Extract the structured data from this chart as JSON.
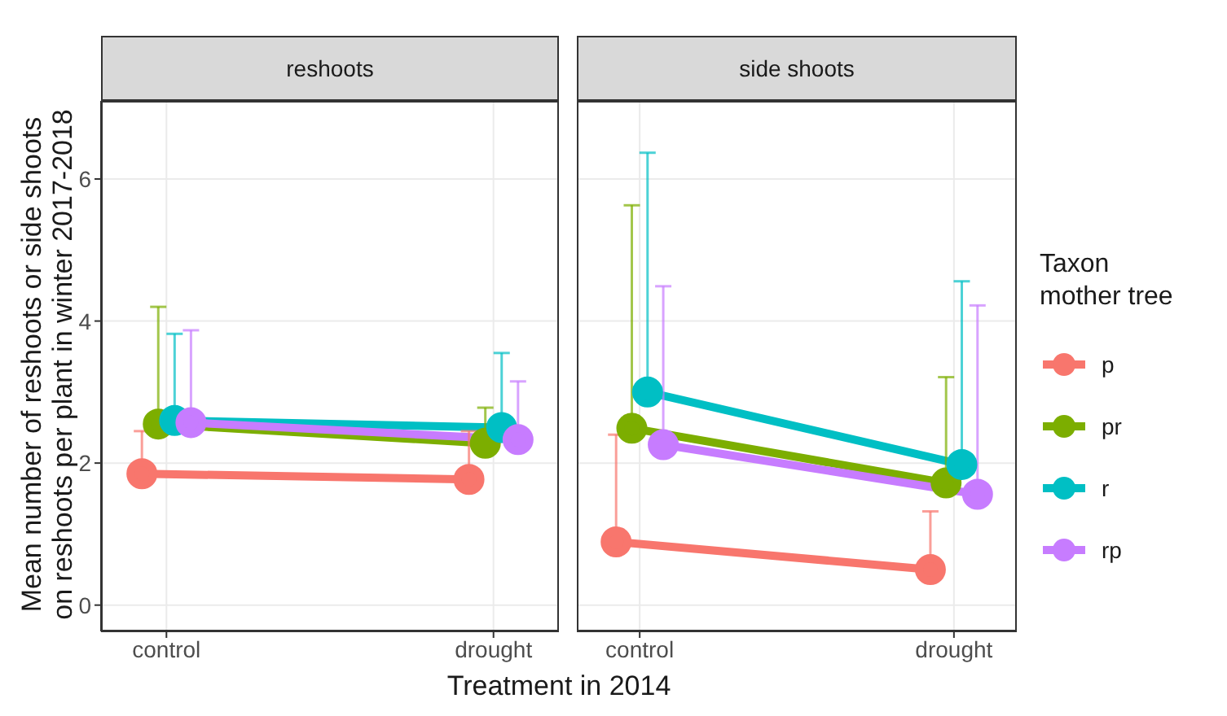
{
  "chart_data": [
    {
      "type": "line",
      "title": "reshoots",
      "xlabel": "Treatment in 2014",
      "ylabel": "Mean number of reshoots or side shoots\non reshoots per plant in winter 2017-2018",
      "categories": [
        "control",
        "drought"
      ],
      "ylim": [
        -0.37,
        7.1
      ],
      "yticks": [
        0,
        2,
        4,
        6
      ],
      "grid": true,
      "marker": "circle",
      "line_style": "solid",
      "series": [
        {
          "color": "#f8766d",
          "values": [
            1.85,
            1.77
          ],
          "errors": [
            [
              1.85,
              2.45
            ],
            [
              1.77,
              2.45
            ]
          ]
        },
        {
          "color": "#7cae00",
          "values": [
            2.55,
            2.28
          ],
          "errors": [
            [
              2.55,
              4.2
            ],
            [
              2.28,
              2.78
            ]
          ]
        },
        {
          "color": "#00bfc4",
          "values": [
            2.6,
            2.5
          ],
          "errors": [
            [
              2.6,
              3.82
            ],
            [
              2.5,
              3.55
            ]
          ]
        },
        {
          "color": "#c77cff",
          "values": [
            2.57,
            2.33
          ],
          "errors": [
            [
              2.57,
              3.87
            ],
            [
              2.33,
              3.15
            ]
          ]
        }
      ]
    },
    {
      "type": "line",
      "title": "side shoots",
      "categories": [
        "control",
        "drought"
      ],
      "ylim": [
        -0.37,
        7.1
      ],
      "yticks": [
        0,
        2,
        4,
        6
      ],
      "tick_labels": "x",
      "grid": true,
      "marker": "circle",
      "line_style": "solid",
      "legend": "right",
      "legend_title": "Taxon\nmother tree",
      "series": [
        {
          "name": "p",
          "color": "#f8766d",
          "values": [
            0.89,
            0.5
          ],
          "errors": [
            [
              0.89,
              2.4
            ],
            [
              0.5,
              1.32
            ]
          ]
        },
        {
          "name": "pr",
          "color": "#7cae00",
          "values": [
            2.49,
            1.72
          ],
          "errors": [
            [
              2.49,
              5.63
            ],
            [
              1.72,
              3.21
            ]
          ]
        },
        {
          "name": "r",
          "color": "#00bfc4",
          "values": [
            3.0,
            1.98
          ],
          "errors": [
            [
              3.0,
              6.37
            ],
            [
              1.98,
              4.56
            ]
          ]
        },
        {
          "name": "rp",
          "color": "#c77cff",
          "values": [
            2.26,
            1.56
          ],
          "errors": [
            [
              2.26,
              4.49
            ],
            [
              1.56,
              4.22
            ]
          ]
        }
      ]
    }
  ]
}
